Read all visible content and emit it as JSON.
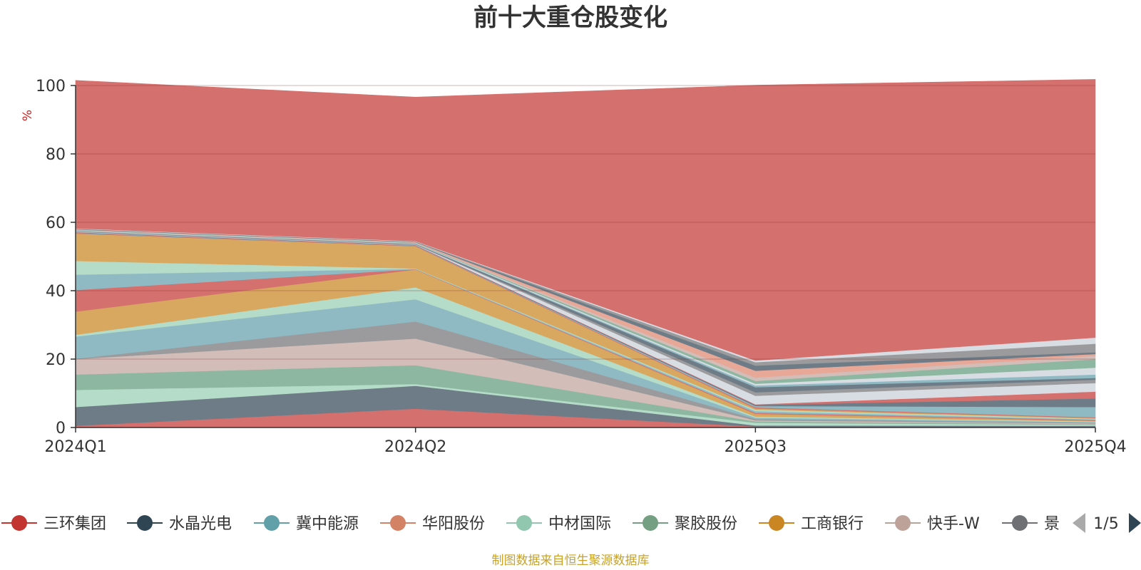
{
  "chart_data": {
    "type": "area",
    "title": "前十大重仓股变化",
    "ylabel": "%",
    "xlabel": "",
    "ylim": [
      0,
      100
    ],
    "yticks": [
      0,
      20,
      40,
      60,
      80,
      100
    ],
    "categories": [
      "2024Q1",
      "2024Q2",
      "2025Q3",
      "2025Q4"
    ],
    "stack_order": "bottom-to-top",
    "layers": [
      {
        "color": "#d4706d",
        "values": [
          0.5,
          5.5,
          0.3,
          0.2
        ]
      },
      {
        "color": "#6e7c87",
        "values": [
          5.5,
          6.7,
          0.3,
          0.3
        ]
      },
      {
        "color": "#b5dcc8",
        "values": [
          5.0,
          0.5,
          0.8,
          0.3
        ]
      },
      {
        "color": "#8db7a0",
        "values": [
          4.5,
          5.5,
          0.4,
          0.2
        ]
      },
      {
        "color": "#d2bdb8",
        "values": [
          4.5,
          7.8,
          0.3,
          0.2
        ]
      },
      {
        "color": "#9b9b9d",
        "values": [
          0.1,
          5.0,
          0.4,
          0.2
        ]
      },
      {
        "color": "#8fbac4",
        "values": [
          6.5,
          6.5,
          0.4,
          0.2
        ]
      },
      {
        "color": "#b5dcc8",
        "values": [
          0.5,
          3.5,
          0.3,
          0.2
        ]
      },
      {
        "color": "#d9a860",
        "values": [
          6.8,
          5.2,
          0.8,
          0.2
        ]
      },
      {
        "color": "#d4706d",
        "values": [
          6.3,
          0.1,
          0.3,
          0.2
        ]
      },
      {
        "color": "#8fbac4",
        "values": [
          4.5,
          0.1,
          0.5,
          0.2
        ]
      },
      {
        "color": "#b5dcc8",
        "values": [
          4.0,
          0.1,
          0.4,
          0.2
        ]
      },
      {
        "color": "#d9a860",
        "values": [
          8.0,
          6.5,
          0.4,
          0.2
        ]
      },
      {
        "color": "#d4706d",
        "values": [
          0.1,
          0.1,
          0.3,
          0.2
        ]
      },
      {
        "color": "#8fbac4",
        "values": [
          0.1,
          0.1,
          0.4,
          3.0
        ]
      },
      {
        "color": "#6e7c87",
        "values": [
          0.1,
          0.1,
          0.3,
          2.5
        ]
      },
      {
        "color": "#d4706d",
        "values": [
          0.1,
          0.1,
          0.2,
          2.0
        ]
      },
      {
        "color": "#d8dde3",
        "values": [
          0.1,
          0.1,
          2.5,
          2.5
        ]
      },
      {
        "color": "#9b9b9d",
        "values": [
          0.1,
          0.1,
          1.0,
          1.0
        ]
      },
      {
        "color": "#6e7c87",
        "values": [
          0.1,
          0.1,
          1.5,
          0.5
        ]
      },
      {
        "color": "#8fbac4",
        "values": [
          0.1,
          0.1,
          0.5,
          1.0
        ]
      },
      {
        "color": "#d8dde3",
        "values": [
          0.1,
          0.1,
          0.5,
          2.0
        ]
      },
      {
        "color": "#8db7a0",
        "values": [
          0.1,
          0.1,
          0.8,
          2.5
        ]
      },
      {
        "color": "#d2bdb8",
        "values": [
          0.1,
          0.1,
          1.0,
          1.0
        ]
      },
      {
        "color": "#e8a898",
        "values": [
          0.1,
          0.1,
          2.0,
          0.5
        ]
      },
      {
        "color": "#6e7c87",
        "values": [
          0.1,
          0.1,
          1.5,
          0.5
        ]
      },
      {
        "color": "#9b9b9d",
        "values": [
          0.1,
          0.1,
          1.0,
          2.5
        ]
      },
      {
        "color": "#d8dde3",
        "values": [
          0.1,
          0.1,
          0.5,
          1.8
        ]
      },
      {
        "color": "#d4706d",
        "values": [
          43.3,
          42.1,
          80.5,
          75.5
        ]
      }
    ],
    "legend": {
      "position": "bottom",
      "page_indicator": "1/5",
      "items": [
        {
          "name": "三环集团",
          "color": "#c23531"
        },
        {
          "name": "水晶光电",
          "color": "#2f4554"
        },
        {
          "name": "冀中能源",
          "color": "#61a0a8"
        },
        {
          "name": "华阳股份",
          "color": "#d48265"
        },
        {
          "name": "中材国际",
          "color": "#91c7ae"
        },
        {
          "name": "聚胶股份",
          "color": "#749f83"
        },
        {
          "name": "工商银行",
          "color": "#ca8622"
        },
        {
          "name": "快手-W",
          "color": "#bda29a"
        },
        {
          "name": "景",
          "color": "#6e7074"
        }
      ]
    },
    "source": "制图数据来自恒生聚源数据库"
  }
}
